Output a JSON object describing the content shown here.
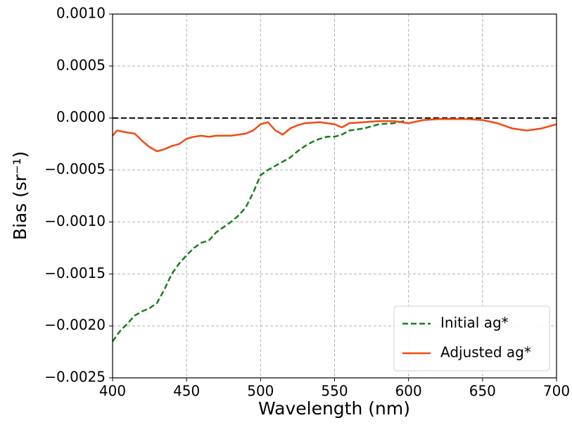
{
  "chart_data": {
    "type": "line",
    "xlabel": "Wavelength (nm)",
    "ylabel": "Bias (sr⁻¹)",
    "xlim": [
      400,
      700
    ],
    "xticks": [
      400,
      450,
      500,
      550,
      600,
      650,
      700
    ],
    "ylim": [
      -0.0025,
      0.001
    ],
    "yticks": [
      {
        "value": -0.0025,
        "label": "−0.0025"
      },
      {
        "value": -0.002,
        "label": "−0.0020"
      },
      {
        "value": -0.0015,
        "label": "−0.0015"
      },
      {
        "value": -0.001,
        "label": "−0.0010"
      },
      {
        "value": -0.0005,
        "label": "−0.0005"
      },
      {
        "value": 0,
        "label": "0.0000"
      },
      {
        "value": 0.0005,
        "label": "0.0005"
      },
      {
        "value": 0.001,
        "label": "0.0010"
      }
    ],
    "grid": true,
    "hline": 0,
    "legend": "lower right",
    "series": [
      {
        "name": "Initial ag*",
        "color": "#1a7f1a",
        "dash": true,
        "x": [
          400,
          405,
          410,
          415,
          420,
          425,
          430,
          435,
          440,
          445,
          450,
          455,
          460,
          465,
          470,
          475,
          480,
          485,
          490,
          495,
          500,
          505,
          510,
          515,
          520,
          525,
          530,
          535,
          540,
          545,
          550,
          555,
          560,
          570,
          580,
          590,
          597
        ],
        "values": [
          -0.00215,
          -0.00205,
          -0.00198,
          -0.0019,
          -0.00186,
          -0.00183,
          -0.00178,
          -0.00165,
          -0.0015,
          -0.0014,
          -0.00132,
          -0.00125,
          -0.0012,
          -0.00118,
          -0.0011,
          -0.00105,
          -0.001,
          -0.00094,
          -0.00086,
          -0.00072,
          -0.00055,
          -0.0005,
          -0.00046,
          -0.00042,
          -0.00038,
          -0.00032,
          -0.00027,
          -0.00023,
          -0.0002,
          -0.00018,
          -0.00018,
          -0.00016,
          -0.00012,
          -0.0001,
          -6e-05,
          -5e-05,
          -3e-05
        ]
      },
      {
        "name": "Adjusted ag*",
        "color": "#f24a12",
        "dash": false,
        "x": [
          400,
          403,
          410,
          415,
          420,
          425,
          430,
          435,
          440,
          445,
          450,
          455,
          460,
          465,
          470,
          480,
          490,
          495,
          500,
          505,
          510,
          515,
          520,
          525,
          530,
          540,
          550,
          555,
          560,
          570,
          580,
          590,
          600,
          610,
          620,
          630,
          640,
          650,
          660,
          670,
          680,
          690,
          700
        ],
        "values": [
          -0.00017,
          -0.00012,
          -0.00014,
          -0.00015,
          -0.00022,
          -0.00028,
          -0.00032,
          -0.0003,
          -0.00027,
          -0.00025,
          -0.0002,
          -0.00018,
          -0.00017,
          -0.00018,
          -0.00017,
          -0.00017,
          -0.00015,
          -0.00012,
          -6e-05,
          -4e-05,
          -0.00012,
          -0.00016,
          -0.0001,
          -7e-05,
          -5e-05,
          -4e-05,
          -6e-05,
          -9e-05,
          -5e-05,
          -4e-05,
          -3e-05,
          -3e-05,
          -5e-05,
          -2e-05,
          -1e-05,
          -1e-05,
          -1e-05,
          -2e-05,
          -5e-05,
          -0.0001,
          -0.00012,
          -0.0001,
          -6e-05
        ]
      }
    ]
  }
}
